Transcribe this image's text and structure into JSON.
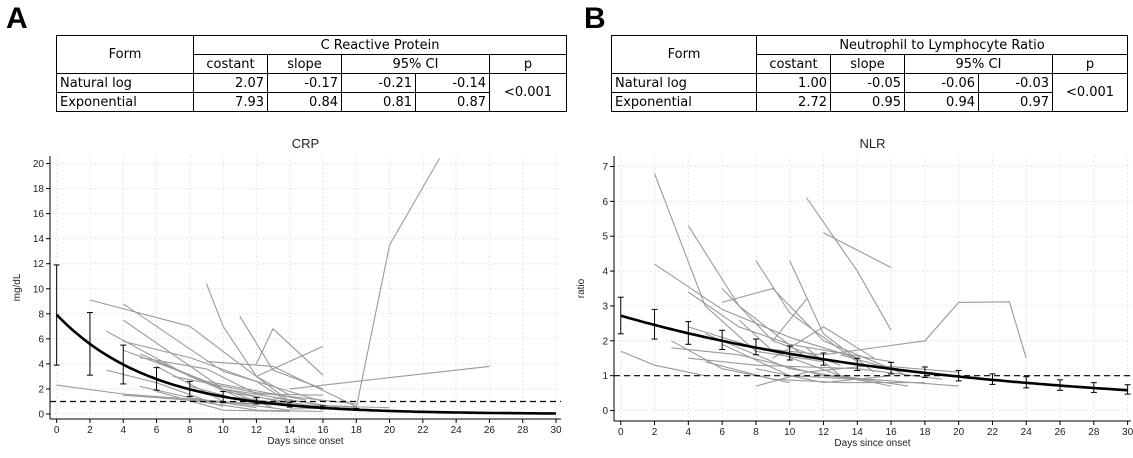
{
  "panel_a": {
    "label": "A",
    "table": {
      "form_header": "Form",
      "group_header": "C Reactive Protein",
      "col_headers": [
        "costant",
        "slope",
        "95% CI",
        "p"
      ],
      "rows": [
        {
          "form": "Natural log",
          "costant": "2.07",
          "slope": "-0.17",
          "ci_low": "-0.21",
          "ci_high": "-0.14"
        },
        {
          "form": "Exponential",
          "costant": "7.93",
          "slope": "0.84",
          "ci_low": "0.81",
          "ci_high": "0.87"
        }
      ],
      "p_value": "<0.001"
    }
  },
  "panel_b": {
    "label": "B",
    "table": {
      "form_header": "Form",
      "group_header": "Neutrophil to Lymphocyte Ratio",
      "col_headers": [
        "costant",
        "slope",
        "95% CI",
        "p"
      ],
      "rows": [
        {
          "form": "Natural log",
          "costant": "1.00",
          "slope": "-0.05",
          "ci_low": "-0.06",
          "ci_high": "-0.03"
        },
        {
          "form": "Exponential",
          "costant": "2.72",
          "slope": "0.95",
          "ci_low": "0.94",
          "ci_high": "0.97"
        }
      ],
      "p_value": "<0.001"
    }
  },
  "chart_data": [
    {
      "type": "line",
      "title": "CRP",
      "xlabel": "Days since onset",
      "ylabel": "mg/dL",
      "xlim": [
        -0.4,
        30.3
      ],
      "ylim": [
        -0.4,
        20.6
      ],
      "xticks": [
        0,
        2,
        4,
        6,
        8,
        10,
        12,
        14,
        16,
        18,
        20,
        22,
        24,
        26,
        28,
        30
      ],
      "yticks": [
        0,
        2,
        4,
        6,
        8,
        10,
        12,
        14,
        16,
        18,
        20
      ],
      "grid": true,
      "reference_line": 1,
      "fit": {
        "form": "exponential",
        "constant": 7.93,
        "rate": 0.84,
        "x_range": [
          0,
          30
        ]
      },
      "error_bars": [
        {
          "x": 0,
          "y": 7.93,
          "low": 3.9,
          "high": 11.9
        },
        {
          "x": 2,
          "y": 5.6,
          "low": 3.1,
          "high": 8.1
        },
        {
          "x": 4,
          "y": 3.95,
          "low": 2.4,
          "high": 5.5
        },
        {
          "x": 6,
          "y": 2.8,
          "low": 1.9,
          "high": 3.7
        },
        {
          "x": 8,
          "y": 1.95,
          "low": 1.4,
          "high": 2.6
        },
        {
          "x": 10,
          "y": 1.4,
          "low": 0.9,
          "high": 1.8
        },
        {
          "x": 12,
          "y": 1.0,
          "low": 0.8,
          "high": 1.3
        },
        {
          "x": 14,
          "y": 0.7,
          "low": 0.55,
          "high": 0.9
        },
        {
          "x": 16,
          "y": 0.5,
          "low": 0.4,
          "high": 0.65
        },
        {
          "x": 18,
          "y": 0.35,
          "low": 0.3,
          "high": 0.45
        }
      ],
      "individual_series": [
        [
          [
            2,
            9.1
          ],
          [
            8,
            7.0
          ],
          [
            14,
            1.0
          ]
        ],
        [
          [
            4,
            8.8
          ],
          [
            10,
            3.4
          ],
          [
            16,
            1.0
          ]
        ],
        [
          [
            4,
            7.5
          ],
          [
            10,
            2.0
          ],
          [
            14,
            0.8
          ]
        ],
        [
          [
            3,
            6.6
          ],
          [
            8,
            3.0
          ],
          [
            13,
            0.5
          ]
        ],
        [
          [
            4,
            5.8
          ],
          [
            8,
            4.5
          ],
          [
            12,
            2.6
          ],
          [
            14,
            0.9
          ]
        ],
        [
          [
            4,
            5.1
          ],
          [
            9,
            2.6
          ],
          [
            15,
            1.1
          ]
        ],
        [
          [
            5,
            4.8
          ],
          [
            10,
            2.0
          ],
          [
            16,
            0.7
          ]
        ],
        [
          [
            5,
            4.5
          ],
          [
            9,
            3.6
          ],
          [
            12,
            1.6
          ],
          [
            16,
            1.5
          ]
        ],
        [
          [
            6,
            4.2
          ],
          [
            11,
            1.3
          ],
          [
            15,
            0.6
          ]
        ],
        [
          [
            6,
            3.8
          ],
          [
            10,
            1.0
          ],
          [
            14,
            0.3
          ]
        ],
        [
          [
            7,
            3.0
          ],
          [
            12,
            1.7
          ],
          [
            18,
            0.8
          ]
        ],
        [
          [
            0,
            2.3
          ],
          [
            4,
            1.6
          ],
          [
            12,
            0.8
          ]
        ],
        [
          [
            4,
            1.5
          ],
          [
            10,
            0.9
          ],
          [
            18,
            0.6
          ]
        ],
        [
          [
            8,
            2.2
          ],
          [
            12,
            0.8
          ],
          [
            20,
            0.5
          ]
        ],
        [
          [
            9,
            10.4
          ],
          [
            10,
            7.0
          ],
          [
            12,
            3.0
          ],
          [
            14,
            1.5
          ]
        ],
        [
          [
            11,
            7.8
          ],
          [
            13,
            3.5
          ],
          [
            16,
            2.0
          ]
        ],
        [
          [
            12,
            4.0
          ],
          [
            13,
            6.8
          ],
          [
            16,
            3.1
          ]
        ],
        [
          [
            12,
            3.0
          ],
          [
            16,
            5.4
          ]
        ],
        [
          [
            9,
            4.2
          ],
          [
            13,
            3.8
          ],
          [
            18,
            0.6
          ]
        ],
        [
          [
            14,
            0.4
          ],
          [
            18,
            0.5
          ],
          [
            20,
            13.5
          ],
          [
            23,
            20.4
          ]
        ],
        [
          [
            14,
            2.0
          ],
          [
            26,
            3.8
          ]
        ],
        [
          [
            10,
            1.8
          ],
          [
            16,
            0.5
          ],
          [
            20,
            0.3
          ]
        ],
        [
          [
            13,
            1.3
          ],
          [
            18,
            0.3
          ]
        ],
        [
          [
            8,
            1.1
          ],
          [
            12,
            0.3
          ],
          [
            16,
            0.2
          ]
        ],
        [
          [
            3,
            3.5
          ],
          [
            6,
            2.5
          ],
          [
            10,
            0.6
          ]
        ],
        [
          [
            5,
            2.2
          ],
          [
            8,
            1.3
          ],
          [
            12,
            0.5
          ]
        ],
        [
          [
            6,
            1.8
          ],
          [
            10,
            0.3
          ],
          [
            14,
            0.2
          ]
        ]
      ]
    },
    {
      "type": "line",
      "title": "NLR",
      "xlabel": "Days since onset",
      "ylabel": "ratio",
      "xlim": [
        -0.4,
        30.2
      ],
      "ylim": [
        -0.3,
        7.3
      ],
      "xticks": [
        0,
        2,
        4,
        6,
        8,
        10,
        12,
        14,
        16,
        18,
        20,
        22,
        24,
        26,
        28,
        30
      ],
      "yticks": [
        0,
        1,
        2,
        3,
        4,
        5,
        6,
        7
      ],
      "grid": true,
      "reference_line": 1,
      "fit": {
        "form": "exponential",
        "constant": 2.72,
        "rate": 0.95,
        "x_range": [
          0,
          30
        ]
      },
      "error_bars": [
        {
          "x": 0,
          "y": 2.72,
          "low": 2.2,
          "high": 3.25
        },
        {
          "x": 2,
          "y": 2.45,
          "low": 2.05,
          "high": 2.9
        },
        {
          "x": 4,
          "y": 2.21,
          "low": 1.9,
          "high": 2.55
        },
        {
          "x": 6,
          "y": 2.0,
          "low": 1.75,
          "high": 2.3
        },
        {
          "x": 8,
          "y": 1.8,
          "low": 1.6,
          "high": 2.05
        },
        {
          "x": 10,
          "y": 1.63,
          "low": 1.45,
          "high": 1.85
        },
        {
          "x": 12,
          "y": 1.47,
          "low": 1.3,
          "high": 1.65
        },
        {
          "x": 14,
          "y": 1.33,
          "low": 1.15,
          "high": 1.5
        },
        {
          "x": 16,
          "y": 1.2,
          "low": 1.05,
          "high": 1.38
        },
        {
          "x": 18,
          "y": 1.08,
          "low": 0.95,
          "high": 1.25
        },
        {
          "x": 20,
          "y": 0.98,
          "low": 0.85,
          "high": 1.15
        },
        {
          "x": 22,
          "y": 0.88,
          "low": 0.75,
          "high": 1.05
        },
        {
          "x": 24,
          "y": 0.8,
          "low": 0.65,
          "high": 0.97
        },
        {
          "x": 26,
          "y": 0.72,
          "low": 0.58,
          "high": 0.88
        },
        {
          "x": 28,
          "y": 0.65,
          "low": 0.52,
          "high": 0.8
        },
        {
          "x": 30,
          "y": 0.59,
          "low": 0.47,
          "high": 0.74
        }
      ],
      "individual_series": [
        [
          [
            2,
            6.8
          ],
          [
            5,
            3.0
          ],
          [
            8,
            1.7
          ],
          [
            12,
            1.4
          ]
        ],
        [
          [
            2,
            4.2
          ],
          [
            6,
            2.9
          ],
          [
            10,
            2.1
          ],
          [
            14,
            1.5
          ]
        ],
        [
          [
            4,
            5.3
          ],
          [
            7,
            3.0
          ],
          [
            11,
            1.5
          ]
        ],
        [
          [
            4,
            3.4
          ],
          [
            7,
            2.4
          ],
          [
            10,
            1.9
          ],
          [
            16,
            1.4
          ]
        ],
        [
          [
            6,
            3.5
          ],
          [
            9,
            2.0
          ],
          [
            13,
            1.3
          ]
        ],
        [
          [
            8,
            4.3
          ],
          [
            10,
            2.8
          ],
          [
            14,
            1.4
          ]
        ],
        [
          [
            11,
            6.1
          ],
          [
            14,
            4.0
          ],
          [
            16,
            2.3
          ]
        ],
        [
          [
            12,
            5.1
          ],
          [
            16,
            4.1
          ]
        ],
        [
          [
            6,
            3.1
          ],
          [
            9,
            3.5
          ],
          [
            12,
            2.0
          ],
          [
            17,
            1.0
          ]
        ],
        [
          [
            9,
            2.0
          ],
          [
            11,
            3.2
          ]
        ],
        [
          [
            10,
            4.3
          ],
          [
            12,
            2.2
          ],
          [
            15,
            1.1
          ]
        ],
        [
          [
            4,
            2.4
          ],
          [
            8,
            1.8
          ],
          [
            12,
            1.6
          ],
          [
            18,
            2.0
          ],
          [
            20,
            3.1
          ],
          [
            23,
            3.12
          ],
          [
            24,
            1.5
          ]
        ],
        [
          [
            3,
            1.8
          ],
          [
            7,
            1.6
          ],
          [
            12,
            1.0
          ],
          [
            20,
            0.7
          ]
        ],
        [
          [
            4,
            1.5
          ],
          [
            8,
            1.3
          ],
          [
            14,
            1.2
          ],
          [
            19,
            0.9
          ]
        ],
        [
          [
            5,
            2.2
          ],
          [
            10,
            1.2
          ],
          [
            15,
            0.8
          ]
        ],
        [
          [
            0,
            1.7
          ],
          [
            2,
            1.3
          ],
          [
            5,
            1.0
          ]
        ],
        [
          [
            6,
            1.9
          ],
          [
            10,
            1.0
          ],
          [
            14,
            0.9
          ]
        ],
        [
          [
            7,
            2.6
          ],
          [
            9,
            1.7
          ],
          [
            13,
            1.0
          ],
          [
            16,
            0.7
          ]
        ],
        [
          [
            8,
            0.7
          ],
          [
            11,
            1.1
          ],
          [
            15,
            1.3
          ],
          [
            20,
            1.1
          ]
        ],
        [
          [
            5,
            1.4
          ],
          [
            9,
            0.9
          ],
          [
            13,
            0.8
          ],
          [
            18,
            0.8
          ]
        ],
        [
          [
            9,
            1.5
          ],
          [
            12,
            2.4
          ],
          [
            15,
            1.5
          ]
        ],
        [
          [
            3,
            2.0
          ],
          [
            6,
            1.2
          ],
          [
            10,
            0.8
          ]
        ],
        [
          [
            11,
            1.8
          ],
          [
            13,
            1.0
          ],
          [
            17,
            0.7
          ]
        ],
        [
          [
            8,
            1.2
          ],
          [
            12,
            0.8
          ],
          [
            16,
            1.0
          ]
        ],
        [
          [
            13,
            1.6
          ],
          [
            16,
            1.2
          ],
          [
            19,
            1.0
          ]
        ]
      ]
    }
  ]
}
